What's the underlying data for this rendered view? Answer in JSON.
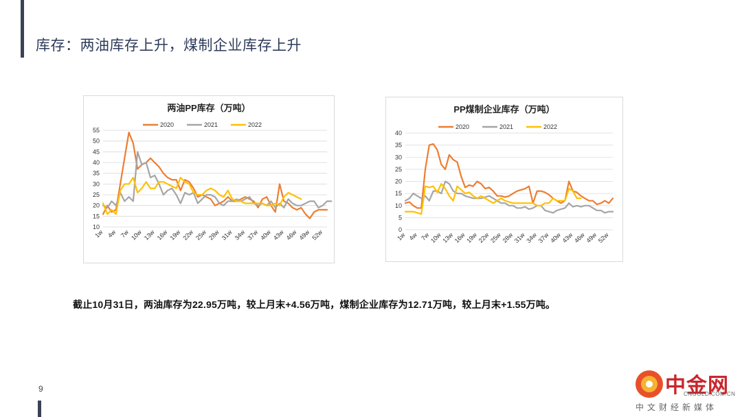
{
  "slide": {
    "title": "库存：两油库存上升，煤制企业库存上升",
    "page_number": "9",
    "summary": "截止10月31日，两油库存为22.95万吨，较上月末+4.56万吨，煤制企业库存为12.71万吨，较上月末+1.55万吨。"
  },
  "watermark": {
    "name": "中金网",
    "url": "CNGOLD.COM.CN",
    "tagline": "中文财经新媒体"
  },
  "colors": {
    "s2020": "#ed7d31",
    "s2021": "#a5a5a5",
    "s2022": "#ffc000",
    "title": "#2d3a5a"
  },
  "chart_data": [
    {
      "type": "line",
      "title": "两油PP库存（万吨）",
      "ylim": [
        10,
        55
      ],
      "yticks": [
        10,
        15,
        20,
        25,
        30,
        35,
        40,
        45,
        50,
        55
      ],
      "x_tick_labels": [
        "1w",
        "4w",
        "7w",
        "10w",
        "13w",
        "16w",
        "19w",
        "22w",
        "25w",
        "28w",
        "31w",
        "34w",
        "37w",
        "40w",
        "43w",
        "46w",
        "49w",
        "52w"
      ],
      "legend_position": "top",
      "series": [
        {
          "name": "2020",
          "values": [
            16,
            20,
            17,
            18,
            30,
            42,
            54,
            49,
            37,
            39,
            40,
            42,
            40,
            38,
            35,
            33,
            32,
            32,
            27,
            32,
            31,
            28,
            24,
            25,
            24,
            23,
            20,
            21,
            22,
            24,
            22,
            22,
            23,
            24,
            23,
            22,
            19,
            23,
            24,
            20,
            17,
            30,
            22,
            21,
            19,
            18,
            19,
            16,
            14,
            17,
            18,
            18,
            18
          ]
        },
        {
          "name": "2021",
          "values": [
            20,
            19,
            22,
            20,
            26,
            22,
            24,
            22,
            45,
            39,
            40,
            33,
            34,
            30,
            25,
            27,
            28,
            25,
            21,
            26,
            25,
            26,
            21,
            23,
            25,
            25,
            24,
            21,
            20,
            22,
            22,
            23,
            22,
            23,
            24,
            21,
            20,
            21,
            20,
            22,
            19,
            21,
            19,
            23,
            21,
            20,
            20,
            21,
            22,
            22,
            19,
            20,
            22,
            22
          ]
        },
        {
          "name": "2022",
          "values": [
            21,
            16,
            18,
            16,
            27,
            30,
            30,
            33,
            26,
            28,
            31,
            28,
            28,
            31,
            31,
            30,
            29,
            28,
            33,
            31,
            30,
            26,
            25,
            25,
            27,
            28,
            27,
            25,
            24,
            27,
            23,
            22,
            22,
            21,
            21,
            21,
            21,
            21,
            20,
            20,
            21,
            20,
            24,
            26,
            25,
            24,
            23
          ]
        }
      ]
    },
    {
      "type": "line",
      "title": "PP煤制企业库存（万吨）",
      "ylim": [
        0,
        40
      ],
      "yticks": [
        0,
        5,
        10,
        15,
        20,
        25,
        30,
        35,
        40
      ],
      "x_tick_labels": [
        "1w",
        "4w",
        "7w",
        "10w",
        "13w",
        "16w",
        "19w",
        "22w",
        "25w",
        "28w",
        "31w",
        "34w",
        "37w",
        "40w",
        "43w",
        "46w",
        "49w",
        "52w"
      ],
      "legend_position": "top",
      "series": [
        {
          "name": "2020",
          "values": [
            11,
            11.5,
            10,
            9,
            9,
            25,
            35,
            35.5,
            33,
            27,
            25,
            31,
            29,
            28,
            22,
            17.5,
            18.5,
            18,
            20,
            19,
            17,
            17.5,
            16,
            14,
            14,
            13.5,
            14,
            15,
            16,
            16.5,
            17,
            18,
            11,
            16,
            16,
            15.5,
            14.5,
            13,
            12,
            11,
            12,
            20,
            16,
            15.5,
            14,
            13,
            12,
            12,
            10.5,
            11,
            12,
            11,
            13
          ]
        },
        {
          "name": "2021",
          "values": [
            12,
            13,
            15,
            14,
            13,
            14,
            12,
            16,
            16,
            15,
            20,
            19,
            16,
            15,
            15,
            14,
            13.5,
            13,
            13,
            13,
            13.5,
            14,
            13,
            12,
            11,
            11,
            10,
            10,
            9,
            9,
            9.5,
            8.5,
            9,
            10,
            10,
            8,
            7.5,
            7,
            8,
            8.5,
            9,
            11,
            9.5,
            10,
            9.5,
            10,
            10,
            9,
            8,
            8,
            7,
            7.5,
            7.5
          ]
        },
        {
          "name": "2022",
          "values": [
            7.5,
            7.5,
            7.5,
            7,
            6.5,
            18,
            17.5,
            18,
            15.5,
            19,
            17,
            14,
            12,
            18,
            16.5,
            15,
            15.5,
            14,
            13,
            14,
            13,
            12,
            11,
            12,
            13,
            12,
            11.5,
            11,
            11,
            11,
            11,
            11,
            11,
            10,
            10,
            11,
            11,
            13,
            12,
            12,
            12,
            17,
            16,
            13,
            13
          ]
        }
      ]
    }
  ]
}
